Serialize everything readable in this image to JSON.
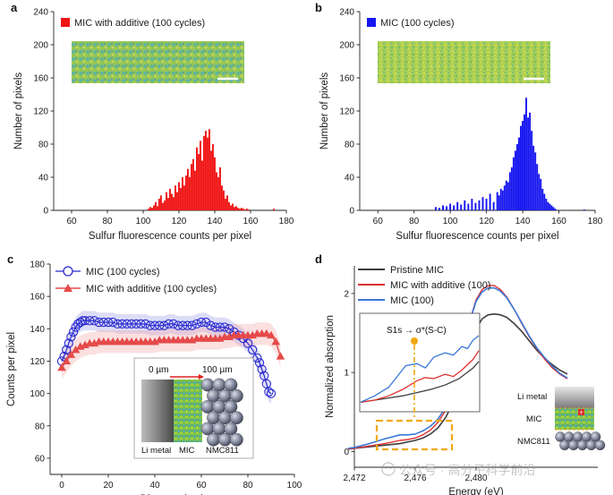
{
  "colors": {
    "red": "#f01414",
    "blue": "#1414f0",
    "mic_blue_line": "#2a2ad0",
    "additive_red": "#e54a4a",
    "pristine": "#3d3d3d",
    "mic100": "#3a78d8",
    "dash_orange": "#f0a810",
    "text": "#1a1a1a"
  },
  "panels": {
    "a": {
      "letter": "a"
    },
    "b": {
      "letter": "b"
    },
    "c": {
      "letter": "c"
    },
    "d": {
      "letter": "d"
    }
  },
  "inset_c": {
    "left_label": "0 µm",
    "right_label": "100 µm",
    "layer_labels": [
      "Li metal",
      "MIC",
      "NMC811"
    ]
  },
  "inset_d_cell": {
    "labels": [
      "Li metal",
      "MIC",
      "NMC811"
    ]
  },
  "inset_d_zoom": {
    "annotation": "S1s → σ*(S-C)"
  },
  "watermark": "公众号 · 高分子科学前沿",
  "chart_data": [
    {
      "panel": "a",
      "type": "bar",
      "title": "",
      "xlabel": "Sulfur fluorescence counts per pixel",
      "ylabel": "Number of pixels",
      "xlim": [
        50,
        180
      ],
      "ylim": [
        0,
        240
      ],
      "xticks": [
        60,
        80,
        100,
        120,
        140,
        160,
        180
      ],
      "yticks": [
        0,
        40,
        80,
        120,
        160,
        200,
        240
      ],
      "legend": "top-left",
      "series": [
        {
          "name": "MIC with additive (100 cycles)",
          "color": "#f01414",
          "bins_x": [
            103,
            104,
            105,
            106,
            107,
            108,
            109,
            110,
            111,
            112,
            113,
            114,
            115,
            116,
            117,
            118,
            119,
            120,
            121,
            122,
            123,
            124,
            125,
            126,
            127,
            128,
            129,
            130,
            131,
            132,
            133,
            134,
            135,
            136,
            137,
            138,
            139,
            140,
            141,
            142,
            143,
            144,
            145,
            146,
            147,
            148,
            149,
            150,
            151,
            152,
            153,
            154,
            155,
            156,
            157,
            158,
            159,
            173
          ],
          "values": [
            2,
            4,
            3,
            6,
            10,
            5,
            14,
            18,
            9,
            12,
            22,
            15,
            26,
            20,
            16,
            30,
            22,
            34,
            27,
            40,
            30,
            42,
            50,
            40,
            56,
            62,
            48,
            76,
            68,
            84,
            60,
            90,
            96,
            88,
            98,
            72,
            80,
            64,
            46,
            40,
            52,
            30,
            24,
            14,
            18,
            10,
            6,
            8,
            4,
            5,
            3,
            2,
            3,
            2,
            1,
            2,
            1,
            2
          ]
        }
      ]
    },
    {
      "panel": "b",
      "type": "bar",
      "title": "",
      "xlabel": "Sulfur fluorescence counts per pixel",
      "ylabel": "Number of pixels",
      "xlim": [
        50,
        180
      ],
      "ylim": [
        0,
        240
      ],
      "xticks": [
        60,
        80,
        100,
        120,
        140,
        160,
        180
      ],
      "yticks": [
        0,
        40,
        80,
        120,
        160,
        200,
        240
      ],
      "legend": "top-left",
      "series": [
        {
          "name": "MIC (100 cycles)",
          "color": "#1414f0",
          "bins_x": [
            92,
            94,
            96,
            98,
            100,
            102,
            104,
            106,
            108,
            110,
            112,
            114,
            116,
            118,
            120,
            122,
            124,
            126,
            127,
            128,
            129,
            130,
            131,
            132,
            133,
            134,
            135,
            136,
            137,
            138,
            139,
            140,
            141,
            142,
            143,
            144,
            145,
            146,
            147,
            148,
            149,
            150,
            151,
            152,
            153,
            154,
            155,
            156,
            157,
            158,
            174
          ],
          "values": [
            4,
            3,
            6,
            5,
            8,
            6,
            10,
            7,
            12,
            8,
            14,
            9,
            12,
            16,
            14,
            20,
            10,
            22,
            18,
            26,
            24,
            30,
            36,
            34,
            46,
            52,
            64,
            72,
            80,
            88,
            102,
            108,
            116,
            136,
            112,
            118,
            96,
            78,
            70,
            56,
            44,
            38,
            26,
            20,
            14,
            10,
            8,
            6,
            4,
            2,
            1
          ]
        }
      ]
    },
    {
      "panel": "c",
      "type": "line",
      "title": "",
      "xlabel": "Distance (µm)",
      "ylabel": "Counts per pixel",
      "xlim": [
        -5,
        100
      ],
      "ylim": [
        50,
        180
      ],
      "xticks": [
        0,
        20,
        40,
        60,
        80,
        100
      ],
      "yticks": [
        60,
        80,
        100,
        120,
        140,
        160,
        180
      ],
      "legend": "top-left",
      "series": [
        {
          "name": "MIC (100 cycles)",
          "marker": "circle",
          "color": "#2a2ad0",
          "x": [
            0,
            1,
            2,
            3,
            4,
            5,
            6,
            7,
            8,
            9,
            10,
            12,
            14,
            16,
            18,
            20,
            22,
            24,
            26,
            28,
            30,
            32,
            34,
            36,
            38,
            40,
            42,
            44,
            46,
            48,
            50,
            52,
            54,
            56,
            58,
            60,
            62,
            64,
            66,
            68,
            70,
            72,
            74,
            76,
            78,
            80,
            82,
            84,
            85,
            86,
            87,
            88,
            89,
            90
          ],
          "y": [
            120,
            123,
            127,
            131,
            135,
            138,
            141,
            143,
            144,
            145,
            145,
            145,
            145,
            144,
            144,
            144,
            144,
            143,
            143,
            143,
            143,
            143,
            143,
            143,
            142,
            142,
            142,
            142,
            143,
            143,
            142,
            142,
            142,
            142,
            143,
            144,
            144,
            142,
            141,
            141,
            141,
            140,
            138,
            136,
            134,
            131,
            127,
            122,
            119,
            115,
            111,
            106,
            101,
            100
          ]
        },
        {
          "name": "MIC with additive (100 cycles)",
          "marker": "triangle",
          "color": "#e54a4a",
          "x": [
            0,
            2,
            4,
            6,
            8,
            10,
            12,
            14,
            16,
            18,
            20,
            22,
            24,
            26,
            28,
            30,
            32,
            34,
            36,
            38,
            40,
            42,
            44,
            46,
            48,
            50,
            52,
            54,
            56,
            58,
            60,
            62,
            64,
            66,
            68,
            70,
            72,
            74,
            76,
            78,
            80,
            82,
            84,
            86,
            88,
            90,
            92,
            94
          ],
          "y": [
            116,
            120,
            124,
            127,
            129,
            130,
            131,
            131,
            132,
            132,
            132,
            132,
            132,
            132,
            132,
            132,
            132,
            132,
            132,
            132,
            132,
            133,
            133,
            133,
            133,
            133,
            133,
            133,
            133,
            134,
            134,
            134,
            134,
            134,
            134,
            135,
            135,
            136,
            136,
            136,
            136,
            136,
            137,
            137,
            137,
            136,
            132,
            123
          ]
        }
      ]
    },
    {
      "panel": "d",
      "type": "line",
      "title": "",
      "xlabel": "Energy (eV)",
      "ylabel": "Normalized absorption",
      "xlim": [
        2472,
        2488
      ],
      "ylim": [
        -0.2,
        2.35
      ],
      "xticks": [
        2472,
        2476,
        2480
      ],
      "xtick_labels": [
        "2,472",
        "2,476",
        "2,480"
      ],
      "yticks": [
        0,
        1,
        2
      ],
      "legend": "top-left",
      "series": [
        {
          "name": "Pristine MIC",
          "color": "#3d3d3d",
          "x": [
            2471.6,
            2472,
            2473,
            2474,
            2475,
            2475.5,
            2476,
            2476.5,
            2477,
            2477.5,
            2478,
            2478.5,
            2479,
            2479.3,
            2479.6,
            2480,
            2480.4,
            2480.8,
            2481.2,
            2481.6,
            2482,
            2482.5,
            2483,
            2483.5,
            2484,
            2484.5,
            2485,
            2485.5,
            2486
          ],
          "y": [
            0.03,
            0.04,
            0.06,
            0.08,
            0.1,
            0.12,
            0.14,
            0.17,
            0.22,
            0.3,
            0.43,
            0.62,
            0.92,
            1.12,
            1.35,
            1.55,
            1.68,
            1.73,
            1.74,
            1.73,
            1.7,
            1.62,
            1.52,
            1.4,
            1.28,
            1.18,
            1.1,
            1.03,
            0.98
          ]
        },
        {
          "name": "MIC with additive (100)",
          "color": "#e03030",
          "x": [
            2471.6,
            2472,
            2473,
            2474,
            2475,
            2475.5,
            2476,
            2476.5,
            2477,
            2477.5,
            2478,
            2478.5,
            2479,
            2479.3,
            2479.6,
            2480,
            2480.4,
            2480.8,
            2481.2,
            2481.6,
            2482,
            2482.5,
            2483,
            2483.5,
            2484,
            2484.5,
            2485,
            2485.5,
            2486
          ],
          "y": [
            0.03,
            0.04,
            0.07,
            0.1,
            0.14,
            0.15,
            0.17,
            0.21,
            0.27,
            0.37,
            0.52,
            0.76,
            1.12,
            1.38,
            1.66,
            1.92,
            2.05,
            2.1,
            2.1,
            2.05,
            1.96,
            1.8,
            1.62,
            1.45,
            1.3,
            1.17,
            1.06,
            0.98,
            0.92
          ]
        },
        {
          "name": "MIC (100)",
          "color": "#3a78d8",
          "x": [
            2471.6,
            2472,
            2473,
            2474,
            2475,
            2475.5,
            2476,
            2476.5,
            2477,
            2477.5,
            2478,
            2478.5,
            2479,
            2479.3,
            2479.6,
            2480,
            2480.4,
            2480.8,
            2481.2,
            2481.6,
            2482,
            2482.5,
            2483,
            2483.5,
            2484,
            2484.5,
            2485,
            2485.5,
            2486
          ],
          "y": [
            0.04,
            0.05,
            0.1,
            0.16,
            0.21,
            0.21,
            0.22,
            0.26,
            0.32,
            0.41,
            0.56,
            0.8,
            1.14,
            1.4,
            1.66,
            1.9,
            2.02,
            2.07,
            2.07,
            2.03,
            1.95,
            1.8,
            1.63,
            1.46,
            1.31,
            1.19,
            1.08,
            0.99,
            0.93
          ]
        }
      ],
      "inset": {
        "xlim": [
          2472,
          2476.2
        ],
        "ylim": [
          0,
          0.45
        ],
        "series": [
          {
            "name": "Pristine MIC",
            "color": "#3d3d3d",
            "x": [
              2472,
              2472.5,
              2473,
              2473.5,
              2474,
              2474.5,
              2475,
              2475.5,
              2476,
              2476.2
            ],
            "y": [
              0.04,
              0.05,
              0.06,
              0.07,
              0.085,
              0.1,
              0.12,
              0.15,
              0.2,
              0.23
            ]
          },
          {
            "name": "MIC with additive (100)",
            "color": "#e03030",
            "x": [
              2472,
              2472.5,
              2473,
              2473.5,
              2474,
              2474.3,
              2474.6,
              2475,
              2475.3,
              2475.6,
              2476,
              2476.2
            ],
            "y": [
              0.04,
              0.05,
              0.07,
              0.1,
              0.14,
              0.155,
              0.15,
              0.17,
              0.16,
              0.19,
              0.24,
              0.28
            ]
          },
          {
            "name": "MIC (100)",
            "color": "#3a78d8",
            "x": [
              2472,
              2472.5,
              2473,
              2473.3,
              2473.6,
              2474,
              2474.3,
              2474.6,
              2475,
              2475.3,
              2475.6,
              2475.8,
              2476,
              2476.2
            ],
            "y": [
              0.04,
              0.07,
              0.11,
              0.16,
              0.21,
              0.22,
              0.2,
              0.25,
              0.27,
              0.26,
              0.3,
              0.29,
              0.33,
              0.35
            ]
          }
        ]
      }
    }
  ]
}
